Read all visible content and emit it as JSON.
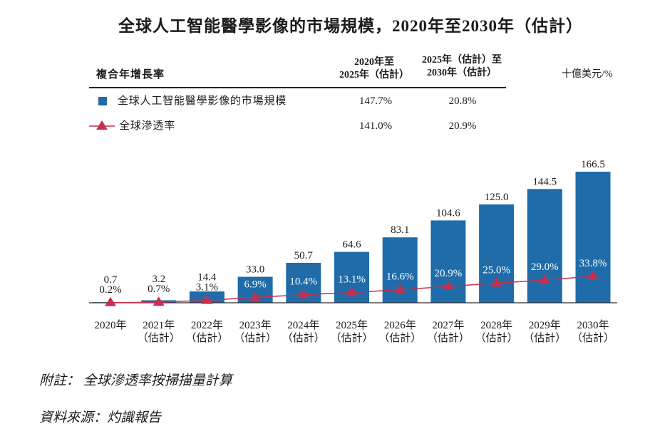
{
  "chart_data": {
    "type": "bar",
    "title": "全球人工智能醫學影像的市場規模，2020年至2030年（估計）",
    "unit": "十億美元/%",
    "categories": [
      "2020年",
      "2021年",
      "2022年",
      "2023年",
      "2024年",
      "2025年",
      "2026年",
      "2027年",
      "2028年",
      "2029年",
      "2030年"
    ],
    "category_notes": [
      null,
      "（估計）",
      "（估計）",
      "（估計）",
      "（估計）",
      "（估計）",
      "（估計）",
      "（估計）",
      "（估計）",
      "（估計）",
      "（估計）"
    ],
    "series": [
      {
        "name": "全球人工智能醫學影像的市場規模",
        "type": "bar",
        "color": "#1f6ca9",
        "values": [
          0.7,
          3.2,
          14.4,
          33.0,
          50.7,
          64.6,
          83.1,
          104.6,
          125.0,
          144.5,
          166.5
        ],
        "value_labels": [
          "0.7",
          "3.2",
          "14.4",
          "33.0",
          "50.7",
          "64.6",
          "83.1",
          "104.6",
          "125.0",
          "144.5",
          "166.5"
        ]
      },
      {
        "name": "全球滲透率",
        "type": "line",
        "color": "#c4314f",
        "values": [
          0.2,
          0.7,
          3.1,
          6.9,
          10.4,
          13.1,
          16.6,
          20.9,
          25.0,
          29.0,
          33.8
        ],
        "value_labels": [
          "0.2%",
          "0.7%",
          "3.1%",
          "6.9%",
          "10.4%",
          "13.1%",
          "16.6%",
          "20.9%",
          "25.0%",
          "29.0%",
          "33.8%"
        ]
      }
    ]
  },
  "cagr_table": {
    "header_label": "複合年增長率",
    "periods": [
      {
        "line1": "2020年至",
        "line2": "2025年（估計）"
      },
      {
        "line1": "2025年（估計）至",
        "line2": "2030年（估計）"
      }
    ],
    "rows": [
      {
        "values": [
          "147.7%",
          "20.8%"
        ]
      },
      {
        "values": [
          "141.0%",
          "20.9%"
        ]
      }
    ]
  },
  "footnotes": {
    "remark": "附註： 全球滲透率按掃描量計算",
    "source": "資料來源：灼識報告"
  }
}
